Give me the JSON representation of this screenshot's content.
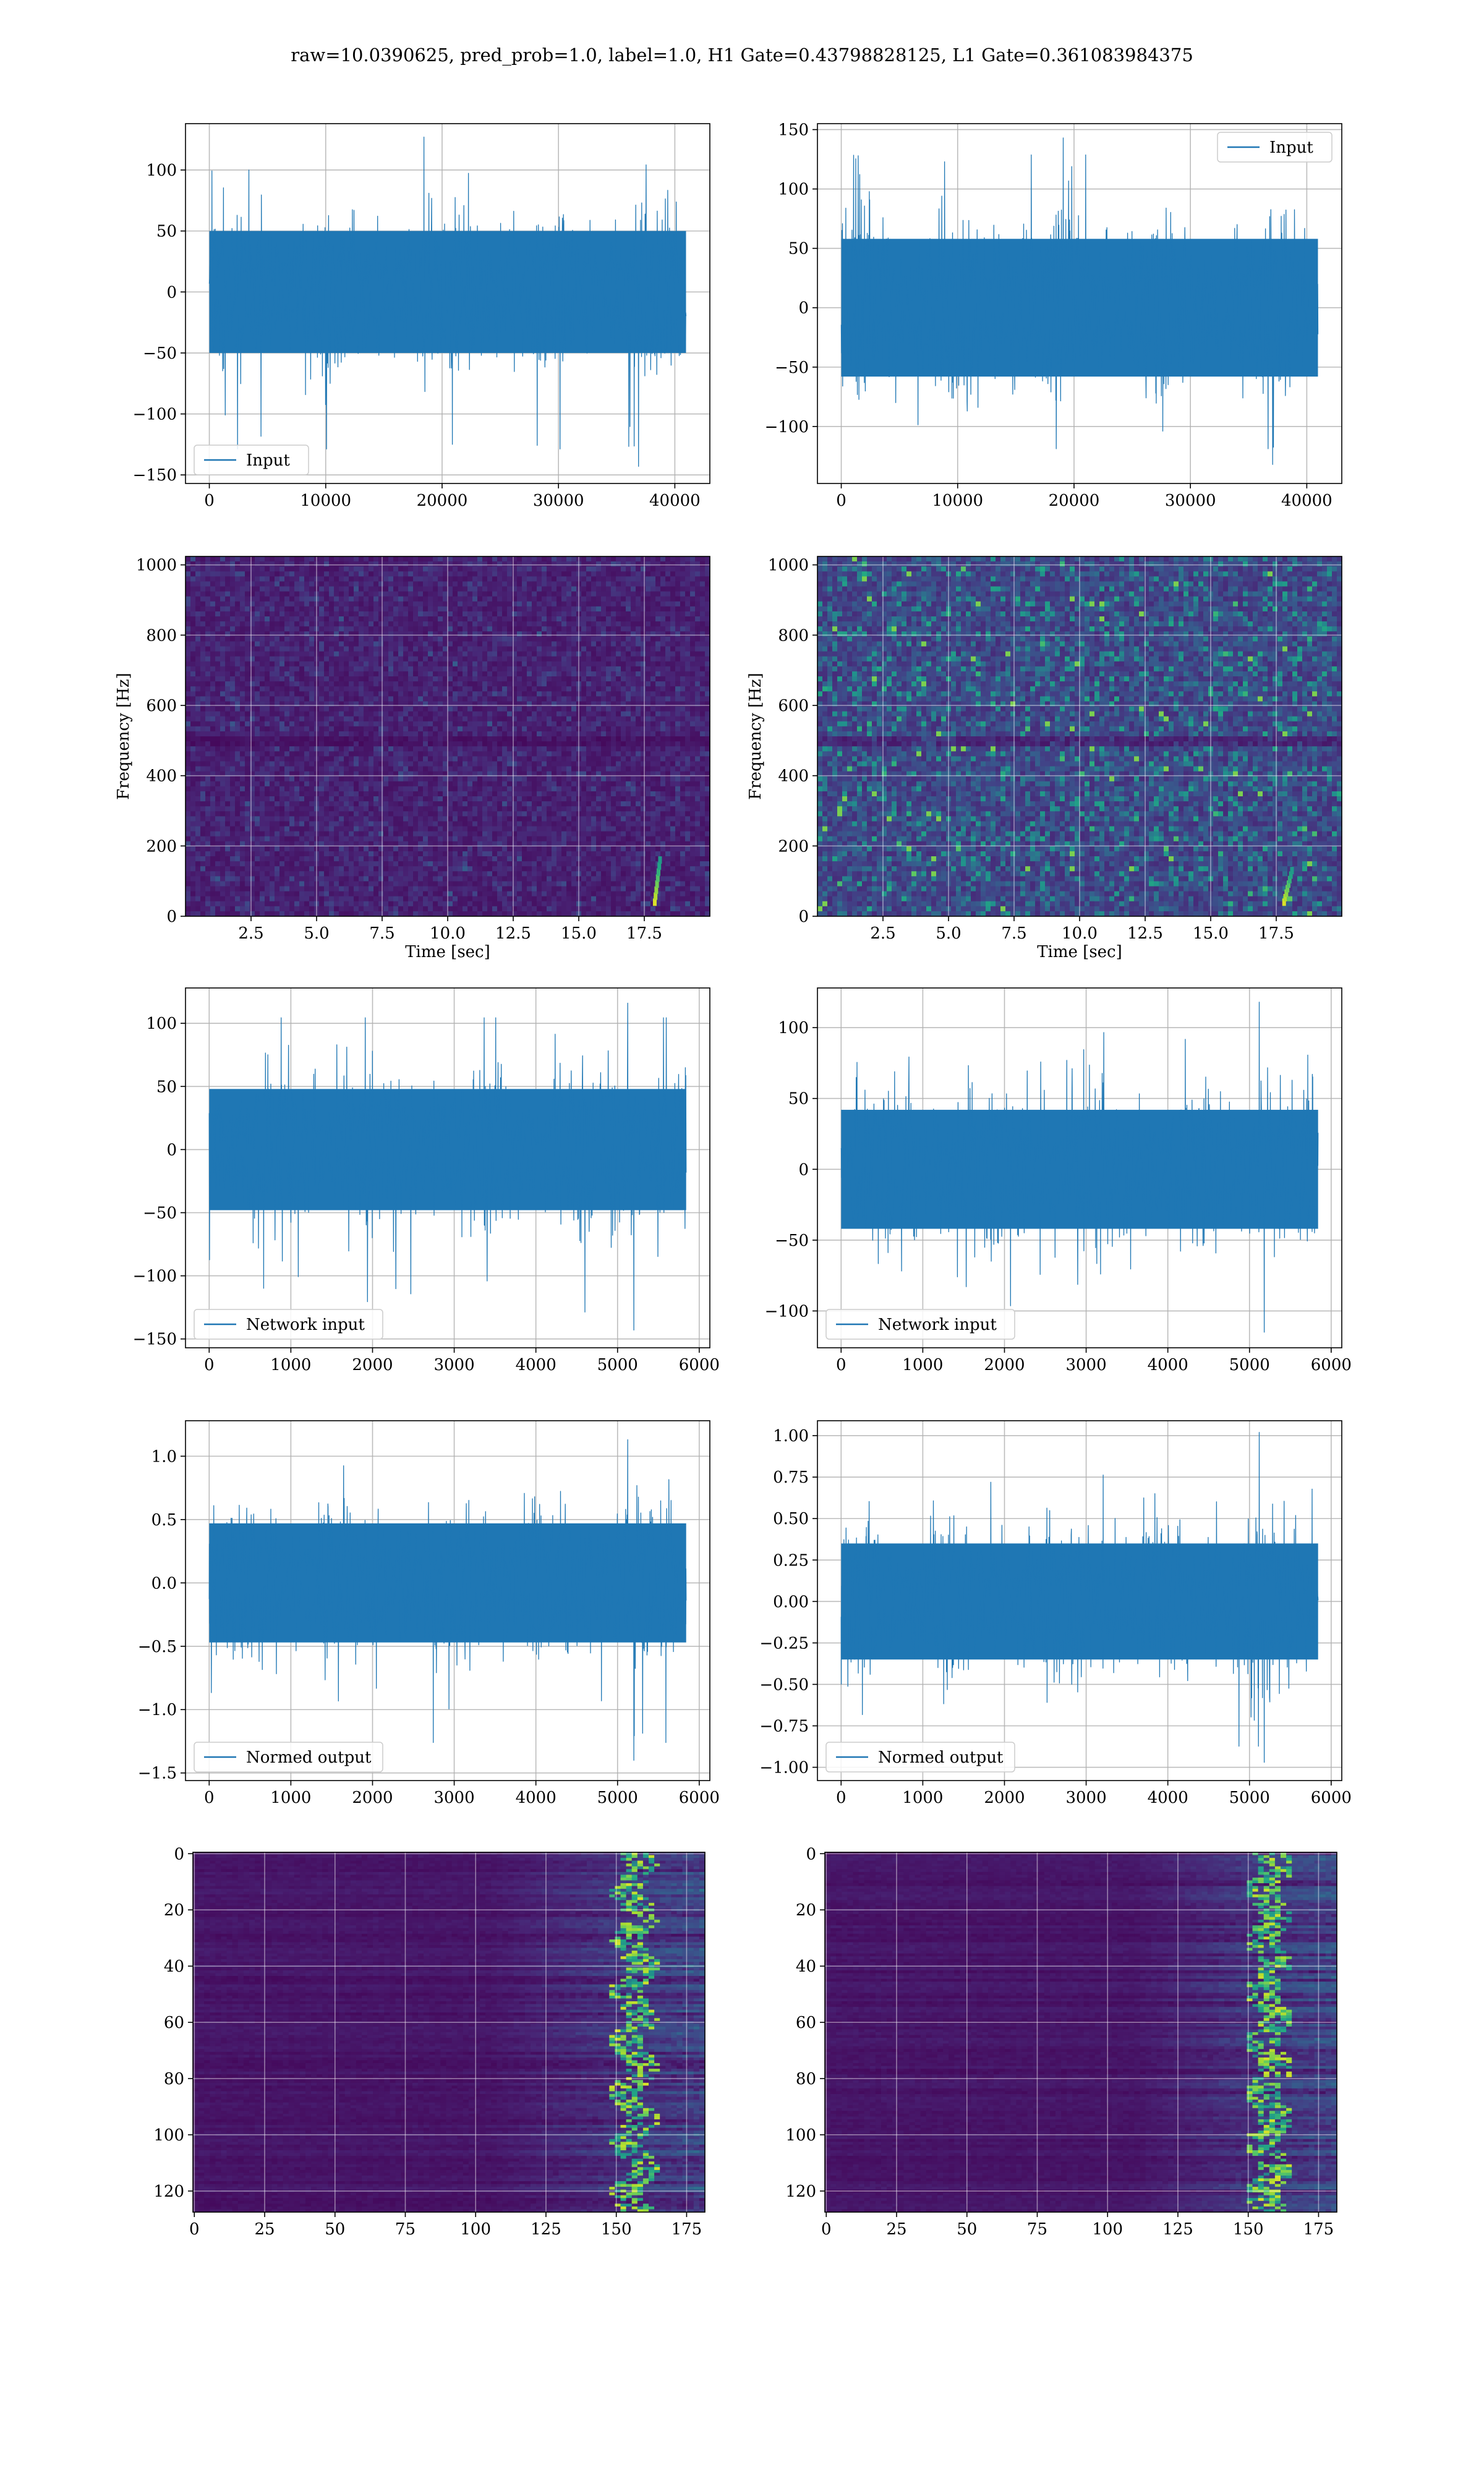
{
  "figure": {
    "suptitle": "raw=10.0390625, pred_prob=1.0, label=1.0, H1 Gate=0.43798828125, L1 Gate=0.361083984375"
  },
  "colors": {
    "line": "#1f77b4",
    "grid": "#b0b0b0",
    "viridis_low": "#440154",
    "viridis_mid": "#21918c",
    "viridis_high": "#fde725"
  },
  "chart_data": [
    {
      "id": "h1-input",
      "type": "line",
      "legend": "Input",
      "legend_loc": "lower left",
      "xlim": [
        -2048,
        43008
      ],
      "ylim": [
        -157,
        138
      ],
      "xticks": [
        0,
        10000,
        20000,
        30000,
        40000
      ],
      "xtick_labels": [
        "0",
        "10000",
        "20000",
        "30000",
        "40000"
      ],
      "yticks": [
        -150,
        -100,
        -50,
        0,
        50,
        100
      ],
      "ytick_labels": [
        "−150",
        "−100",
        "−50",
        "0",
        "50",
        "100"
      ],
      "x_range": [
        0,
        40960
      ],
      "amplitude": {
        "core": 50,
        "min": -143,
        "max": 127
      },
      "grid": true
    },
    {
      "id": "l1-input",
      "type": "line",
      "legend": "Input",
      "legend_loc": "upper right",
      "xlim": [
        -2048,
        43008
      ],
      "ylim": [
        -148,
        155
      ],
      "xticks": [
        0,
        10000,
        20000,
        30000,
        40000
      ],
      "xtick_labels": [
        "0",
        "10000",
        "20000",
        "30000",
        "40000"
      ],
      "yticks": [
        -100,
        -50,
        0,
        50,
        100,
        150
      ],
      "ytick_labels": [
        "−100",
        "−50",
        "0",
        "50",
        "100",
        "150"
      ],
      "x_range": [
        0,
        40960
      ],
      "amplitude": {
        "core": 58,
        "min": -132,
        "max": 143
      },
      "grid": true
    },
    {
      "id": "h1-spectrogram",
      "type": "heatmap",
      "colormap": "viridis",
      "xlabel": "Time [sec]",
      "ylabel": "Frequency [Hz]",
      "xlim": [
        0,
        20
      ],
      "ylim": [
        0,
        1024
      ],
      "xticks": [
        2.5,
        5.0,
        7.5,
        10.0,
        12.5,
        15.0,
        17.5
      ],
      "xtick_labels": [
        "2.5",
        "5.0",
        "7.5",
        "10.0",
        "12.5",
        "15.0",
        "17.5"
      ],
      "yticks": [
        0,
        200,
        400,
        600,
        800,
        1000
      ],
      "ytick_labels": [
        "0",
        "200",
        "400",
        "600",
        "800",
        "1000"
      ],
      "chirp": {
        "t_start": 17.9,
        "t_end": 18.1,
        "f_start": 40,
        "f_end": 160
      },
      "grid": true
    },
    {
      "id": "l1-spectrogram",
      "type": "heatmap",
      "colormap": "viridis",
      "xlabel": "Time [sec]",
      "ylabel": "Frequency [Hz]",
      "xlim": [
        0,
        20
      ],
      "ylim": [
        0,
        1024
      ],
      "xticks": [
        2.5,
        5.0,
        7.5,
        10.0,
        12.5,
        15.0,
        17.5
      ],
      "xtick_labels": [
        "2.5",
        "5.0",
        "7.5",
        "10.0",
        "12.5",
        "15.0",
        "17.5"
      ],
      "yticks": [
        0,
        200,
        400,
        600,
        800,
        1000
      ],
      "ytick_labels": [
        "0",
        "200",
        "400",
        "600",
        "800",
        "1000"
      ],
      "chirp": {
        "t_start": 17.8,
        "t_end": 18.1,
        "f_start": 40,
        "f_end": 130
      },
      "grid": true
    },
    {
      "id": "h1-network-input",
      "type": "line",
      "legend": "Network input",
      "legend_loc": "lower left",
      "xlim": [
        -290,
        6130
      ],
      "ylim": [
        -157,
        128
      ],
      "xticks": [
        0,
        1000,
        2000,
        3000,
        4000,
        5000,
        6000
      ],
      "xtick_labels": [
        "0",
        "1000",
        "2000",
        "3000",
        "4000",
        "5000",
        "6000"
      ],
      "yticks": [
        -150,
        -100,
        -50,
        0,
        50,
        100
      ],
      "ytick_labels": [
        "−150",
        "−100",
        "−50",
        "0",
        "50",
        "100"
      ],
      "x_range": [
        0,
        5840
      ],
      "amplitude": {
        "core": 48,
        "min": -143,
        "max": 116
      },
      "burst": {
        "x_start": 4850,
        "x_end": 5350,
        "max": 116,
        "min": -143
      },
      "grid": true
    },
    {
      "id": "l1-network-input",
      "type": "line",
      "legend": "Network input",
      "legend_loc": "lower left",
      "xlim": [
        -290,
        6130
      ],
      "ylim": [
        -126,
        128
      ],
      "xticks": [
        0,
        1000,
        2000,
        3000,
        4000,
        5000,
        6000
      ],
      "xtick_labels": [
        "0",
        "1000",
        "2000",
        "3000",
        "4000",
        "5000",
        "6000"
      ],
      "yticks": [
        -100,
        -50,
        0,
        50,
        100
      ],
      "ytick_labels": [
        "−100",
        "−50",
        "0",
        "50",
        "100"
      ],
      "x_range": [
        0,
        5840
      ],
      "amplitude": {
        "core": 42,
        "min": -115,
        "max": 118
      },
      "burst": {
        "x_start": 4900,
        "x_end": 5300,
        "max": 118,
        "min": -110
      },
      "grid": true
    },
    {
      "id": "h1-normed-output",
      "type": "line",
      "legend": "Normed output",
      "legend_loc": "lower left",
      "xlim": [
        -290,
        6130
      ],
      "ylim": [
        -1.56,
        1.28
      ],
      "xticks": [
        0,
        1000,
        2000,
        3000,
        4000,
        5000,
        6000
      ],
      "xtick_labels": [
        "0",
        "1000",
        "2000",
        "3000",
        "4000",
        "5000",
        "6000"
      ],
      "yticks": [
        -1.5,
        -1.0,
        -0.5,
        0.0,
        0.5,
        1.0
      ],
      "ytick_labels": [
        "−1.5",
        "−1.0",
        "−0.5",
        "0.0",
        "0.5",
        "1.0"
      ],
      "x_range": [
        0,
        5840
      ],
      "amplitude": {
        "core": 0.47,
        "min": -1.4,
        "max": 1.13
      },
      "burst": {
        "x_start": 4850,
        "x_end": 5350,
        "max": 1.13,
        "min": -1.4
      },
      "grid": true
    },
    {
      "id": "l1-normed-output",
      "type": "line",
      "legend": "Normed output",
      "legend_loc": "lower left",
      "xlim": [
        -290,
        6130
      ],
      "ylim": [
        -1.08,
        1.09
      ],
      "xticks": [
        0,
        1000,
        2000,
        3000,
        4000,
        5000,
        6000
      ],
      "xtick_labels": [
        "0",
        "1000",
        "2000",
        "3000",
        "4000",
        "5000",
        "6000"
      ],
      "yticks": [
        -1.0,
        -0.75,
        -0.5,
        -0.25,
        0.0,
        0.25,
        0.5,
        0.75,
        1.0
      ],
      "ytick_labels": [
        "−1.00",
        "−0.75",
        "−0.50",
        "−0.25",
        "0.00",
        "0.25",
        "0.50",
        "0.75",
        "1.00"
      ],
      "x_range": [
        0,
        5840
      ],
      "amplitude": {
        "core": 0.35,
        "min": -0.97,
        "max": 1.02
      },
      "burst": {
        "x_start": 4900,
        "x_end": 5300,
        "max": 1.02,
        "min": -0.95
      },
      "grid": true
    },
    {
      "id": "h1-feature-map",
      "type": "heatmap",
      "colormap": "viridis",
      "y_inverted": true,
      "xlim": [
        -0.5,
        181.5
      ],
      "ylim": [
        127.5,
        -0.5
      ],
      "rows": 128,
      "cols": 182,
      "xticks": [
        0,
        25,
        50,
        75,
        100,
        125,
        150,
        175
      ],
      "xtick_labels": [
        "0",
        "25",
        "50",
        "75",
        "100",
        "125",
        "150",
        "175"
      ],
      "yticks": [
        0,
        20,
        40,
        60,
        80,
        100,
        120
      ],
      "ytick_labels": [
        "0",
        "20",
        "40",
        "60",
        "80",
        "100",
        "120"
      ],
      "active_from_col": 105,
      "peak_col": 157,
      "grid": true
    },
    {
      "id": "l1-feature-map",
      "type": "heatmap",
      "colormap": "viridis",
      "y_inverted": true,
      "xlim": [
        -0.5,
        181.5
      ],
      "ylim": [
        127.5,
        -0.5
      ],
      "rows": 128,
      "cols": 182,
      "xticks": [
        0,
        25,
        50,
        75,
        100,
        125,
        150,
        175
      ],
      "xtick_labels": [
        "0",
        "25",
        "50",
        "75",
        "100",
        "125",
        "150",
        "175"
      ],
      "yticks": [
        0,
        20,
        40,
        60,
        80,
        100,
        120
      ],
      "ytick_labels": [
        "0",
        "20",
        "40",
        "60",
        "80",
        "100",
        "120"
      ],
      "active_from_col": 110,
      "peak_col": 158,
      "grid": true
    }
  ]
}
